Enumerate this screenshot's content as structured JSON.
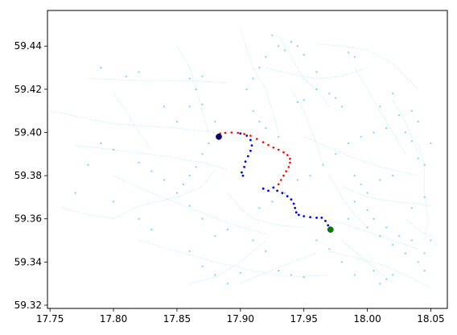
{
  "chart_data": {
    "type": "scatter",
    "title": "",
    "xlabel": "",
    "ylabel": "",
    "xlim": [
      17.748,
      18.063
    ],
    "ylim": [
      59.3185,
      59.4565
    ],
    "grid": false,
    "legend": "none",
    "x_ticks": [
      17.75,
      17.8,
      17.85,
      17.9,
      17.95,
      18.0,
      18.05
    ],
    "x_tick_labels": [
      "17.75",
      "17.80",
      "17.85",
      "17.90",
      "17.95",
      "18.00",
      "18.05"
    ],
    "y_ticks": [
      59.32,
      59.34,
      59.36,
      59.38,
      59.4,
      59.42,
      59.44
    ],
    "y_tick_labels": [
      "59.32",
      "59.34",
      "59.36",
      "59.38",
      "59.40",
      "59.42",
      "59.44"
    ],
    "colors": {
      "network": "#00bfbf",
      "route_red": "#ff0000",
      "route_blue": "#0000ff",
      "start": "#000080",
      "end": "#008000",
      "axes": "#000000",
      "background": "#ffffff"
    },
    "network_polylines": [
      [
        [
          17.75,
          59.41
        ],
        [
          17.8,
          59.404
        ],
        [
          17.85,
          59.402
        ],
        [
          17.88,
          59.4
        ]
      ],
      [
        [
          17.77,
          59.394
        ],
        [
          17.8,
          59.392
        ],
        [
          17.84,
          59.389
        ],
        [
          17.87,
          59.386
        ],
        [
          17.89,
          59.383
        ]
      ],
      [
        [
          17.78,
          59.425
        ],
        [
          17.82,
          59.424
        ],
        [
          17.86,
          59.424
        ],
        [
          17.89,
          59.423
        ]
      ],
      [
        [
          17.85,
          59.44
        ],
        [
          17.86,
          59.43
        ],
        [
          17.865,
          59.42
        ],
        [
          17.87,
          59.41
        ],
        [
          17.875,
          59.4
        ]
      ],
      [
        [
          17.8,
          59.38
        ],
        [
          17.83,
          59.372
        ],
        [
          17.86,
          59.365
        ],
        [
          17.89,
          59.358
        ],
        [
          17.92,
          59.353
        ]
      ],
      [
        [
          17.82,
          59.35
        ],
        [
          17.85,
          59.345
        ],
        [
          17.88,
          59.34
        ],
        [
          17.91,
          59.336
        ],
        [
          17.94,
          59.333
        ],
        [
          17.97,
          59.334
        ]
      ],
      [
        [
          17.8,
          59.36
        ],
        [
          17.82,
          59.366
        ],
        [
          17.85,
          59.37
        ],
        [
          17.87,
          59.375
        ],
        [
          17.88,
          59.383
        ]
      ],
      [
        [
          17.9,
          59.448
        ],
        [
          17.91,
          59.43
        ],
        [
          17.92,
          59.42
        ],
        [
          17.925,
          59.41
        ],
        [
          17.93,
          59.4
        ]
      ],
      [
        [
          17.93,
          59.445
        ],
        [
          17.94,
          59.435
        ],
        [
          17.95,
          59.425
        ],
        [
          17.96,
          59.42
        ],
        [
          17.97,
          59.412
        ]
      ],
      [
        [
          17.96,
          59.441
        ],
        [
          17.98,
          59.44
        ],
        [
          18.0,
          59.438
        ],
        [
          18.02,
          59.432
        ],
        [
          18.04,
          59.42
        ]
      ],
      [
        [
          17.99,
          59.43
        ],
        [
          18.0,
          59.42
        ],
        [
          18.01,
          59.41
        ],
        [
          18.02,
          59.4
        ],
        [
          18.03,
          59.39
        ]
      ],
      [
        [
          17.95,
          59.398
        ],
        [
          17.97,
          59.393
        ],
        [
          17.99,
          59.388
        ],
        [
          18.01,
          59.384
        ],
        [
          18.04,
          59.38
        ]
      ],
      [
        [
          17.98,
          59.375
        ],
        [
          18.0,
          59.37
        ],
        [
          18.02,
          59.368
        ],
        [
          18.04,
          59.367
        ],
        [
          18.05,
          59.366
        ]
      ],
      [
        [
          17.96,
          59.36
        ],
        [
          17.98,
          59.358
        ],
        [
          18.0,
          59.354
        ],
        [
          18.02,
          59.35
        ],
        [
          18.04,
          59.346
        ]
      ],
      [
        [
          17.97,
          59.345
        ],
        [
          17.99,
          59.342
        ],
        [
          18.01,
          59.339
        ],
        [
          18.03,
          59.334
        ],
        [
          18.05,
          59.328
        ]
      ],
      [
        [
          17.98,
          59.35
        ],
        [
          17.99,
          59.345
        ],
        [
          18.0,
          59.34
        ],
        [
          18.01,
          59.335
        ],
        [
          18.02,
          59.33
        ]
      ],
      [
        [
          18.04,
          59.395
        ],
        [
          18.045,
          59.385
        ],
        [
          18.045,
          59.372
        ],
        [
          18.048,
          59.36
        ],
        [
          18.045,
          59.35
        ]
      ],
      [
        [
          18.02,
          59.415
        ],
        [
          18.03,
          59.405
        ],
        [
          18.035,
          59.398
        ],
        [
          18.04,
          59.39
        ]
      ],
      [
        [
          17.89,
          59.372
        ],
        [
          17.9,
          59.365
        ],
        [
          17.91,
          59.36
        ],
        [
          17.93,
          59.357
        ],
        [
          17.95,
          59.356
        ]
      ],
      [
        [
          17.86,
          59.33
        ],
        [
          17.88,
          59.333
        ],
        [
          17.9,
          59.34
        ],
        [
          17.91,
          59.345
        ],
        [
          17.92,
          59.35
        ]
      ],
      [
        [
          17.94,
          59.42
        ],
        [
          17.95,
          59.41
        ],
        [
          17.955,
          59.402
        ],
        [
          17.96,
          59.395
        ],
        [
          17.965,
          59.385
        ]
      ],
      [
        [
          17.97,
          59.38
        ],
        [
          17.98,
          59.37
        ],
        [
          17.99,
          59.362
        ],
        [
          18.0,
          59.356
        ]
      ],
      [
        [
          17.8,
          59.418
        ],
        [
          17.81,
          59.41
        ],
        [
          17.82,
          59.4
        ],
        [
          17.83,
          59.392
        ]
      ],
      [
        [
          17.92,
          59.43
        ],
        [
          17.94,
          59.427
        ],
        [
          17.96,
          59.425
        ],
        [
          17.98,
          59.426
        ],
        [
          18.0,
          59.43
        ]
      ],
      [
        [
          17.9,
          59.33
        ],
        [
          17.92,
          59.335
        ],
        [
          17.94,
          59.34
        ],
        [
          17.96,
          59.344
        ]
      ],
      [
        [
          18.03,
          59.36
        ],
        [
          18.04,
          59.355
        ],
        [
          18.05,
          59.352
        ],
        [
          18.055,
          59.347
        ]
      ],
      [
        [
          17.76,
          59.365
        ],
        [
          17.78,
          59.362
        ],
        [
          17.8,
          59.36
        ]
      ]
    ],
    "network_points": [
      [
        17.93,
        59.44
      ],
      [
        17.935,
        59.438
      ],
      [
        17.94,
        59.442
      ],
      [
        17.945,
        59.44
      ],
      [
        17.95,
        59.436
      ],
      [
        17.985,
        59.437
      ],
      [
        17.99,
        59.435
      ],
      [
        17.96,
        59.428
      ],
      [
        17.945,
        59.414
      ],
      [
        17.95,
        59.415
      ],
      [
        17.86,
        59.425
      ],
      [
        17.865,
        59.42
      ],
      [
        17.87,
        59.426
      ],
      [
        17.86,
        59.412
      ],
      [
        17.87,
        59.413
      ],
      [
        17.84,
        59.412
      ],
      [
        17.85,
        59.405
      ],
      [
        17.82,
        59.428
      ],
      [
        17.81,
        59.426
      ],
      [
        17.79,
        59.43
      ],
      [
        17.96,
        59.42
      ],
      [
        17.97,
        59.418
      ],
      [
        17.975,
        59.416
      ],
      [
        17.98,
        59.412
      ],
      [
        18.01,
        59.412
      ],
      [
        18.02,
        59.418
      ],
      [
        18.03,
        59.4
      ],
      [
        18.035,
        59.396
      ],
      [
        18.04,
        59.388
      ],
      [
        18.045,
        59.385
      ],
      [
        18.02,
        59.38
      ],
      [
        18.01,
        59.378
      ],
      [
        18.0,
        59.372
      ],
      [
        17.99,
        59.368
      ],
      [
        17.985,
        59.36
      ],
      [
        18.0,
        59.356
      ],
      [
        18.01,
        59.352
      ],
      [
        18.02,
        59.348
      ],
      [
        18.03,
        59.344
      ],
      [
        18.04,
        59.34
      ],
      [
        18.045,
        59.336
      ],
      [
        18.05,
        59.35
      ],
      [
        18.005,
        59.336
      ],
      [
        18.01,
        59.33
      ],
      [
        18.015,
        59.332
      ],
      [
        18.02,
        59.334
      ],
      [
        17.99,
        59.334
      ],
      [
        17.98,
        59.34
      ],
      [
        17.97,
        59.346
      ],
      [
        17.96,
        59.35
      ],
      [
        17.94,
        59.334
      ],
      [
        17.95,
        59.333
      ],
      [
        17.93,
        59.336
      ],
      [
        17.92,
        59.345
      ],
      [
        17.91,
        59.35
      ],
      [
        17.89,
        59.355
      ],
      [
        17.88,
        59.352
      ],
      [
        17.87,
        59.36
      ],
      [
        17.86,
        59.366
      ],
      [
        17.85,
        59.372
      ],
      [
        17.84,
        59.378
      ],
      [
        17.83,
        59.382
      ],
      [
        17.82,
        59.386
      ],
      [
        17.8,
        59.392
      ],
      [
        17.79,
        59.395
      ],
      [
        17.78,
        59.385
      ],
      [
        17.77,
        59.372
      ],
      [
        17.8,
        59.368
      ],
      [
        17.82,
        59.36
      ],
      [
        17.83,
        59.355
      ],
      [
        17.86,
        59.345
      ],
      [
        17.87,
        59.338
      ],
      [
        17.88,
        59.334
      ],
      [
        17.89,
        59.33
      ],
      [
        17.9,
        59.335
      ],
      [
        17.915,
        59.365
      ],
      [
        17.925,
        59.368
      ],
      [
        17.935,
        59.372
      ],
      [
        17.945,
        59.378
      ],
      [
        17.955,
        59.38
      ],
      [
        17.965,
        59.385
      ],
      [
        17.975,
        59.39
      ],
      [
        17.985,
        59.395
      ],
      [
        17.995,
        59.398
      ],
      [
        18.005,
        59.4
      ],
      [
        18.015,
        59.402
      ],
      [
        18.025,
        59.408
      ],
      [
        18.035,
        59.41
      ],
      [
        18.04,
        59.405
      ],
      [
        18.05,
        59.395
      ],
      [
        17.905,
        59.42
      ],
      [
        17.91,
        59.425
      ],
      [
        17.915,
        59.43
      ],
      [
        17.92,
        59.435
      ],
      [
        17.925,
        59.445
      ],
      [
        17.91,
        59.41
      ],
      [
        17.915,
        59.405
      ],
      [
        17.92,
        59.402
      ],
      [
        17.93,
        59.398
      ],
      [
        17.88,
        59.405
      ],
      [
        17.875,
        59.395
      ],
      [
        17.87,
        59.39
      ],
      [
        17.865,
        59.384
      ],
      [
        17.86,
        59.38
      ],
      [
        17.855,
        59.376
      ],
      [
        17.99,
        59.38
      ],
      [
        17.995,
        59.376
      ],
      [
        18.0,
        59.364
      ],
      [
        18.005,
        59.36
      ],
      [
        18.015,
        59.356
      ],
      [
        18.025,
        59.352
      ],
      [
        18.035,
        59.35
      ],
      [
        18.045,
        59.344
      ],
      [
        18.035,
        59.365
      ],
      [
        18.045,
        59.37
      ]
    ],
    "route_red_points": [
      [
        17.884,
        59.3995
      ],
      [
        17.888,
        59.3998
      ],
      [
        17.893,
        59.4
      ],
      [
        17.898,
        59.3998
      ],
      [
        17.903,
        59.3993
      ],
      [
        17.908,
        59.3985
      ],
      [
        17.913,
        59.397
      ],
      [
        17.918,
        59.3955
      ],
      [
        17.922,
        59.3942
      ],
      [
        17.926,
        59.393
      ],
      [
        17.93,
        59.392
      ],
      [
        17.934,
        59.3908
      ],
      [
        17.937,
        59.3895
      ],
      [
        17.939,
        59.3878
      ],
      [
        17.939,
        59.386
      ],
      [
        17.938,
        59.384
      ],
      [
        17.936,
        59.382
      ],
      [
        17.934,
        59.38
      ],
      [
        17.932,
        59.378
      ],
      [
        17.93,
        59.376
      ]
    ],
    "route_blue_points": [
      [
        17.9,
        59.3995
      ],
      [
        17.905,
        59.3985
      ],
      [
        17.908,
        59.3965
      ],
      [
        17.909,
        59.394
      ],
      [
        17.908,
        59.3915
      ],
      [
        17.906,
        59.389
      ],
      [
        17.904,
        59.3865
      ],
      [
        17.903,
        59.384
      ],
      [
        17.901,
        59.3815
      ],
      [
        17.902,
        59.38
      ],
      [
        17.918,
        59.374
      ],
      [
        17.922,
        59.373
      ],
      [
        17.926,
        59.3745
      ],
      [
        17.929,
        59.373
      ],
      [
        17.933,
        59.372
      ],
      [
        17.937,
        59.3705
      ],
      [
        17.94,
        59.369
      ],
      [
        17.942,
        59.367
      ],
      [
        17.943,
        59.365
      ],
      [
        17.944,
        59.363
      ],
      [
        17.946,
        59.3618
      ],
      [
        17.95,
        59.3612
      ],
      [
        17.955,
        59.3608
      ],
      [
        17.96,
        59.3605
      ],
      [
        17.964,
        59.3605
      ],
      [
        17.967,
        59.359
      ],
      [
        17.969,
        59.357
      ],
      [
        17.97,
        59.3555
      ]
    ],
    "start_point": [
      17.883,
      59.398
    ],
    "end_point": [
      17.971,
      59.355
    ]
  }
}
